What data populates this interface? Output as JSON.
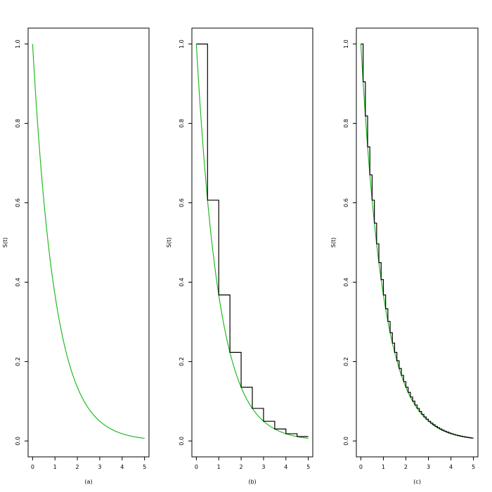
{
  "chart_data": [
    {
      "type": "line",
      "title": "",
      "xlabel": "(a)",
      "ylabel": "S(t)",
      "xlim": [
        0,
        5
      ],
      "ylim": [
        0,
        1
      ],
      "x_ticks": [
        "0",
        "1",
        "2",
        "3",
        "4",
        "5"
      ],
      "y_ticks": [
        "0.0",
        "0.2",
        "0.4",
        "0.6",
        "0.8",
        "1.0"
      ],
      "series": [
        {
          "kind": "curve",
          "color": "#22bb22",
          "rate": 1.0
        }
      ]
    },
    {
      "type": "line",
      "title": "",
      "xlabel": "(b)",
      "ylabel": "S(t)",
      "xlim": [
        0,
        5
      ],
      "ylim": [
        0,
        1
      ],
      "x_ticks": [
        "0",
        "1",
        "2",
        "3",
        "4",
        "5"
      ],
      "y_ticks": [
        "0.0",
        "0.2",
        "0.4",
        "0.6",
        "0.8",
        "1.0"
      ],
      "series": [
        {
          "kind": "curve",
          "color": "#22bb22",
          "rate": 1.0
        },
        {
          "kind": "step",
          "color": "#000000",
          "step_width": 0.5,
          "rate": 1.0
        }
      ]
    },
    {
      "type": "line",
      "title": "",
      "xlabel": "(c)",
      "ylabel": "S(t)",
      "xlim": [
        0,
        5
      ],
      "ylim": [
        0,
        1
      ],
      "x_ticks": [
        "0",
        "1",
        "2",
        "3",
        "4",
        "5"
      ],
      "y_ticks": [
        "0.0",
        "0.2",
        "0.4",
        "0.6",
        "0.8",
        "1.0"
      ],
      "series": [
        {
          "kind": "curve",
          "color": "#22bb22",
          "rate": 1.0
        },
        {
          "kind": "step",
          "color": "#000000",
          "step_width": 0.1,
          "rate": 1.0
        }
      ]
    }
  ]
}
